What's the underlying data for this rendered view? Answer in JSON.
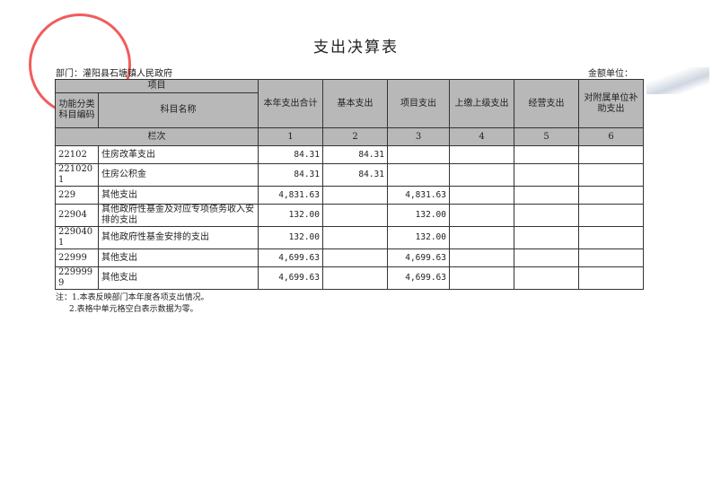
{
  "title": "支出决算表",
  "department": "部门：灌阳县石塘镇人民政府",
  "unit": "金额单位：",
  "stamp_text": "灌阳县石塘镇人民政府",
  "headers": {
    "project": "项目",
    "code": "功能分类科目编码",
    "name": "科目名称",
    "cols": [
      "本年支出合计",
      "基本支出",
      "项目支出",
      "上缴上级支出",
      "经营支出",
      "对附属单位补助支出"
    ],
    "lanci": "栏次",
    "nums": [
      "1",
      "2",
      "3",
      "4",
      "5",
      "6"
    ]
  },
  "rows": [
    {
      "code": "22102",
      "name": "住房改革支出",
      "v": [
        "84.31",
        "84.31",
        "",
        "",
        "",
        ""
      ]
    },
    {
      "code": "2210201",
      "name": "住房公积金",
      "v": [
        "84.31",
        "84.31",
        "",
        "",
        "",
        ""
      ]
    },
    {
      "code": "229",
      "name": "其他支出",
      "v": [
        "4,831.63",
        "",
        "4,831.63",
        "",
        "",
        ""
      ]
    },
    {
      "code": "22904",
      "name": "其他政府性基金及对应专项债务收入安排的支出",
      "v": [
        "132.00",
        "",
        "132.00",
        "",
        "",
        ""
      ]
    },
    {
      "code": "2290401",
      "name": "其他政府性基金安排的支出",
      "v": [
        "132.00",
        "",
        "132.00",
        "",
        "",
        ""
      ]
    },
    {
      "code": "22999",
      "name": "其他支出",
      "v": [
        "4,699.63",
        "",
        "4,699.63",
        "",
        "",
        ""
      ]
    },
    {
      "code": "2299999",
      "name": "其他支出",
      "v": [
        "4,699.63",
        "",
        "4,699.63",
        "",
        "",
        ""
      ]
    }
  ],
  "notes": [
    "注：1.本表反映部门本年度各项支出情况。",
    "2.表格中单元格空白表示数据为零。"
  ]
}
